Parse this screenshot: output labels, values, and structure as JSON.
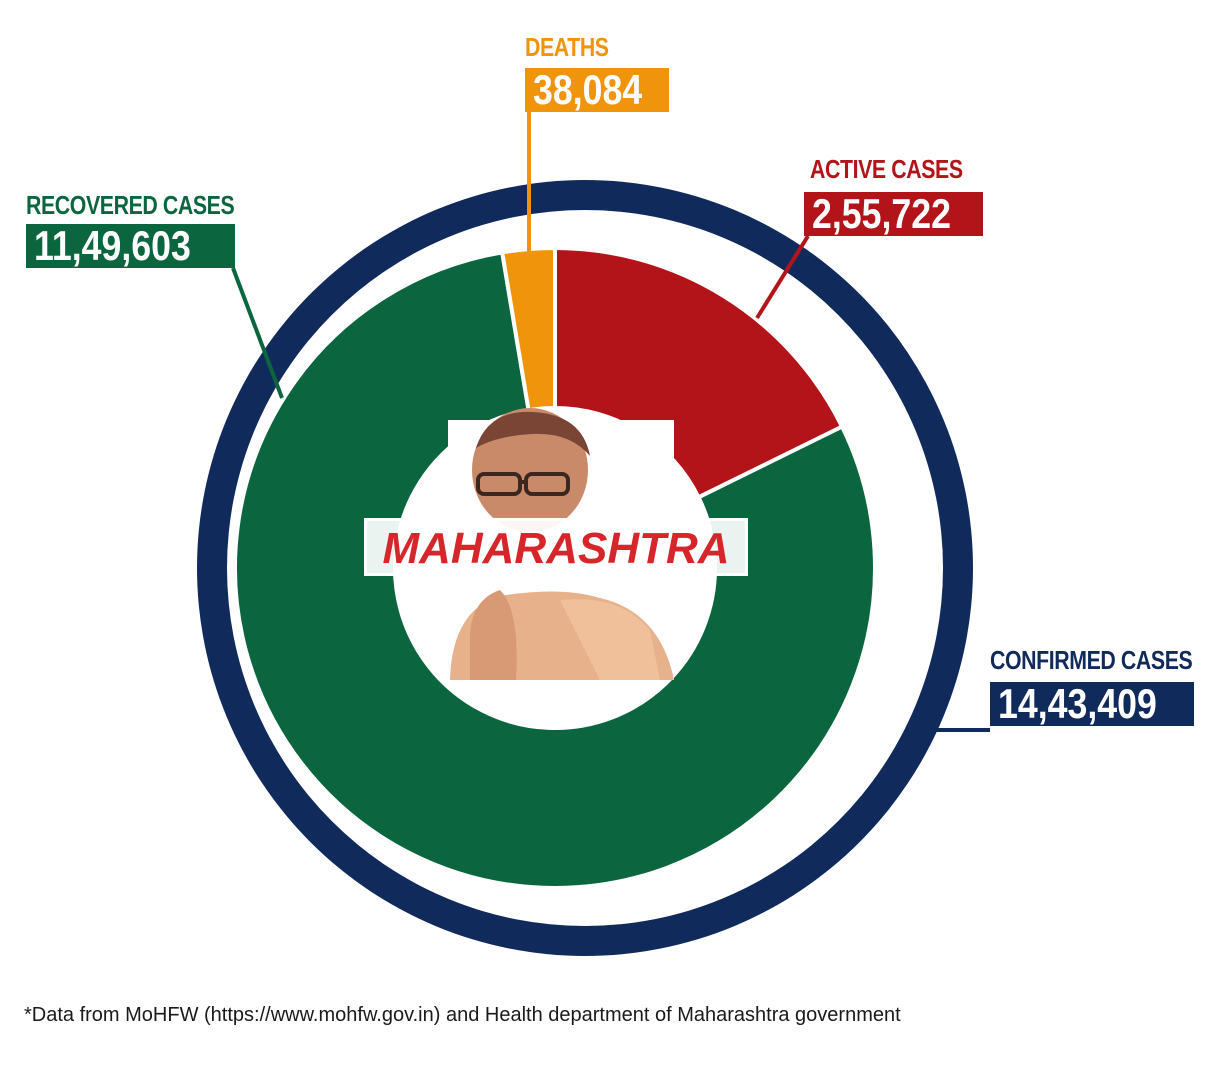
{
  "colors": {
    "confirmed": "#112a5c",
    "recovered": "#0b6640",
    "active": "#b31419",
    "deaths": "#f0940c",
    "center_title": "#d7262b"
  },
  "center": {
    "title": "MAHARASHTRA",
    "image": "portrait-photo"
  },
  "chart_data": {
    "type": "pie",
    "title": "",
    "outer_ring": {
      "name": "CONFIRMED CASES",
      "label": "CONFIRMED CASES",
      "value_text": "14,43,409",
      "value": 1443409
    },
    "slices": [
      {
        "key": "recovered",
        "label": "RECOVERED CASES",
        "value_text": "11,49,603",
        "value": 1149603
      },
      {
        "key": "deaths",
        "label": "DEATHS",
        "value_text": "38,084",
        "value": 38084
      },
      {
        "key": "active",
        "label": "ACTIVE CASES",
        "value_text": "2,55,722",
        "value": 255722
      }
    ]
  },
  "footnote": "*Data from MoHFW (https://www.mohfw.gov.in) and Health department of Maharashtra government"
}
